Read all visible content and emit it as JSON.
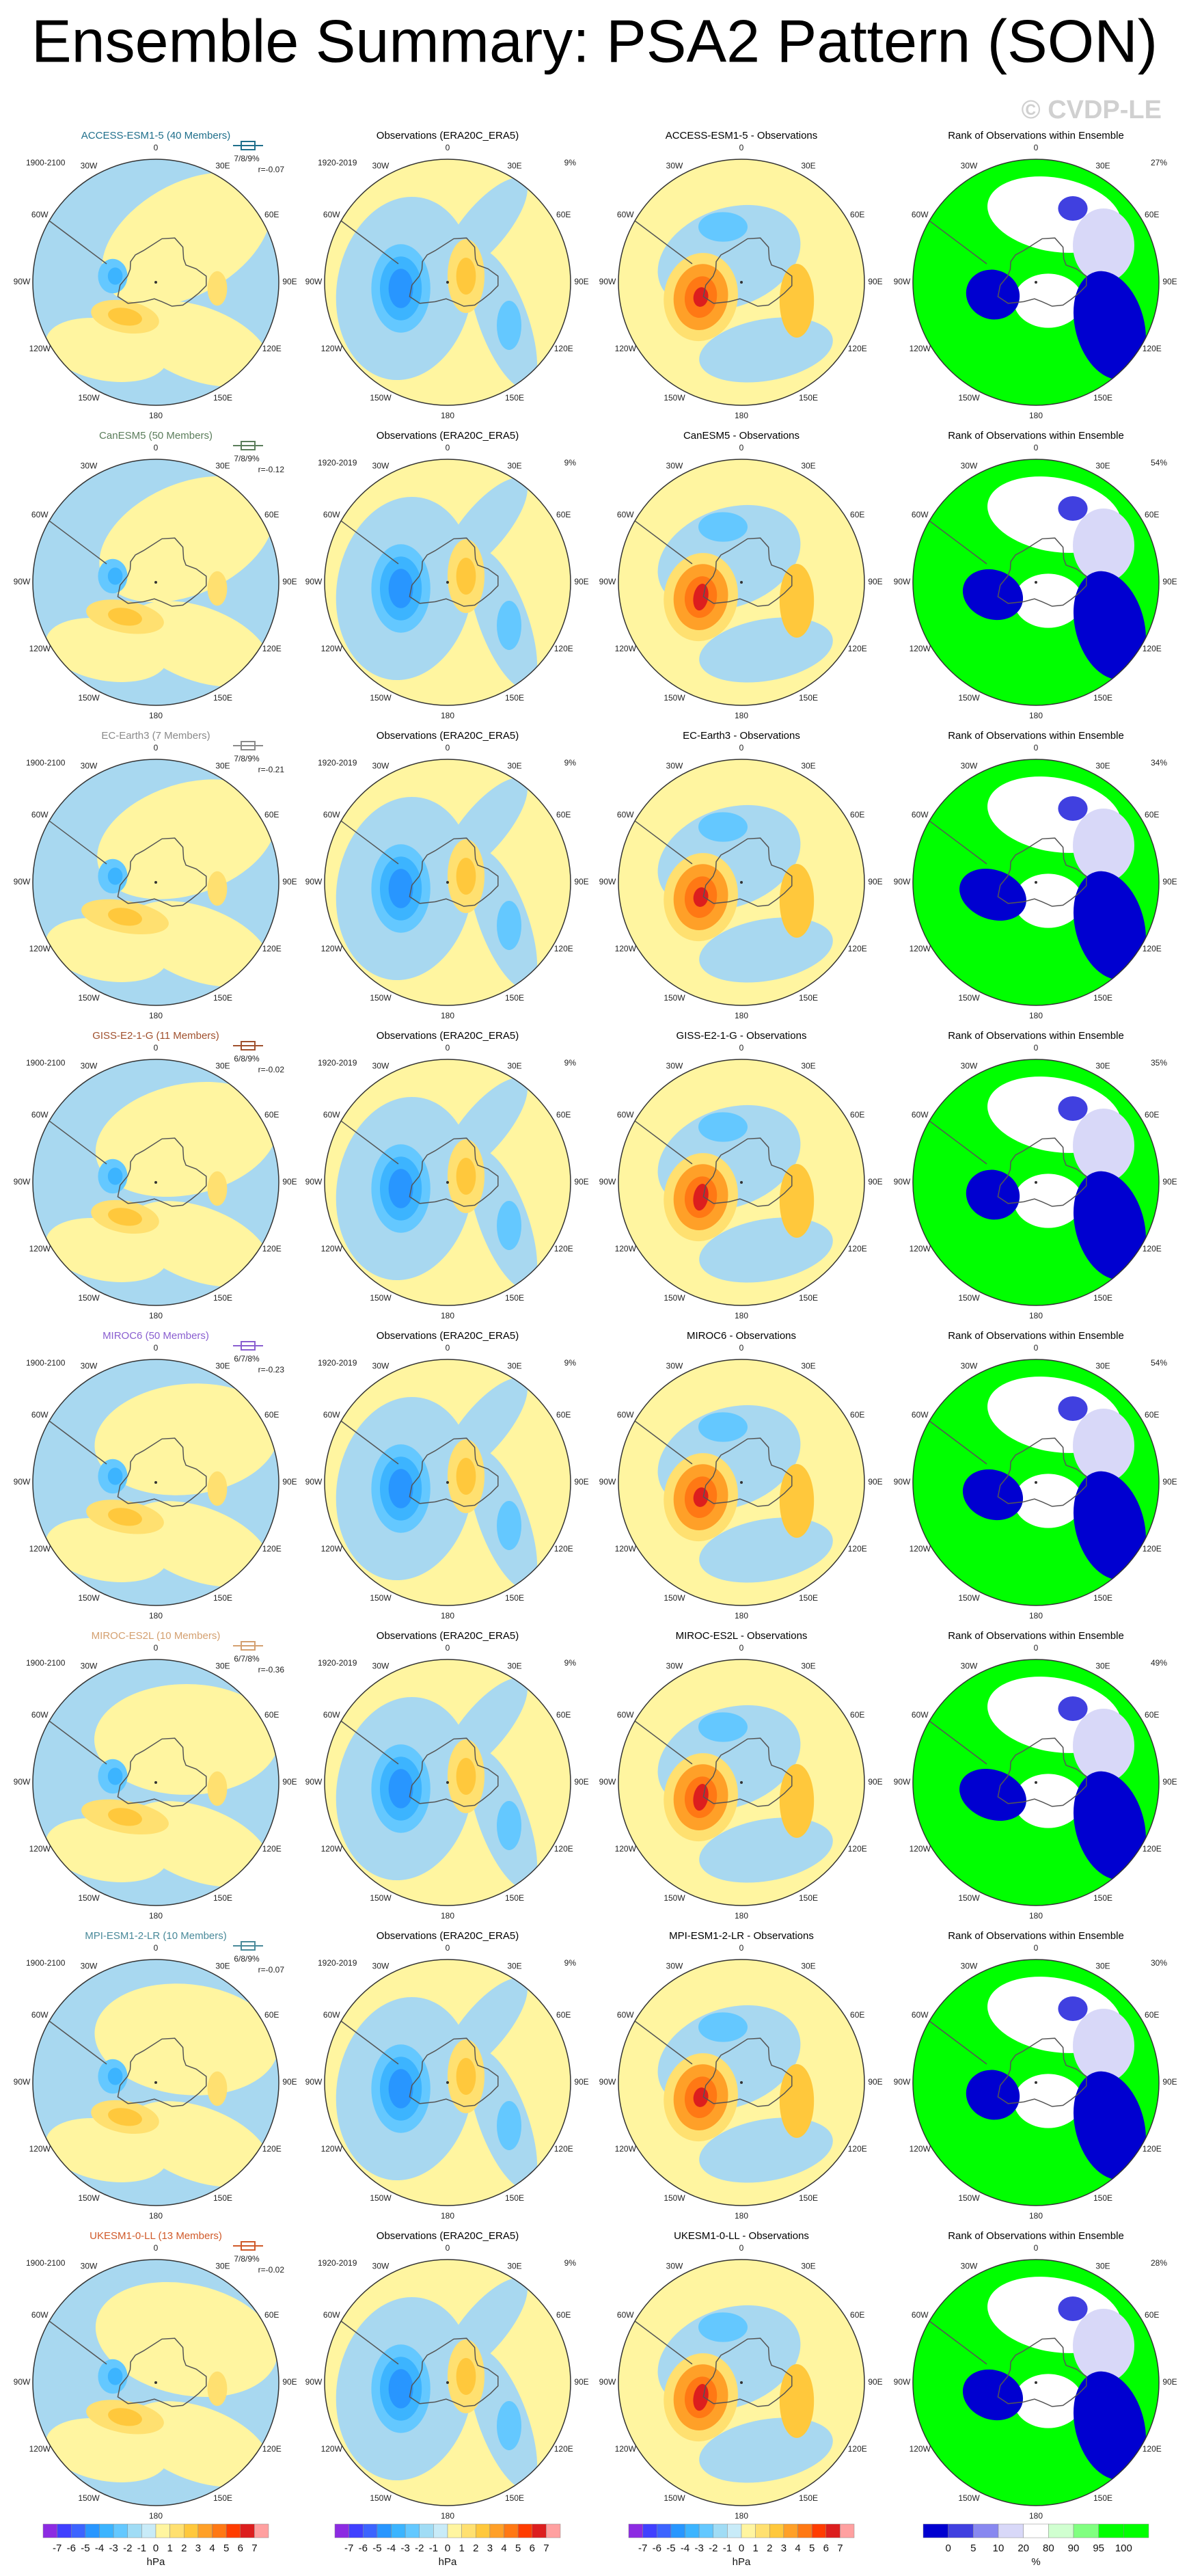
{
  "title": "Ensemble Summary: PSA2 Pattern (SON)",
  "watermark": "© CVDP-LE",
  "lon_labels": [
    "0",
    "30E",
    "60E",
    "90E",
    "120E",
    "150E",
    "180",
    "150W",
    "120W",
    "90W",
    "60W",
    "30W"
  ],
  "obs_title": "Observations (ERA20C_ERA5)",
  "obs_period": "1920-2019",
  "obs_pct": "9%",
  "rank_title": "Rank of Observations within Ensemble",
  "rows": [
    {
      "model": "ACCESS-ESM1-5 (40 Members)",
      "color": "#1f6f8b",
      "period": "1900-2100",
      "stats": "7/8/9%",
      "r": "r=-0.07",
      "diff_title": "ACCESS-ESM1-5 - Observations",
      "rank_pct": "27%"
    },
    {
      "model": "CanESM5 (50 Members)",
      "color": "#5b7d5b",
      "stats": "7/8/9%",
      "r": "r=-0.12",
      "diff_title": "CanESM5 - Observations",
      "rank_pct": "54%"
    },
    {
      "model": "EC-Earth3 (7 Members)",
      "color": "#8a8a8a",
      "period": "1900-2100",
      "stats": "7/8/9%",
      "r": "r=-0.21",
      "diff_title": "EC-Earth3 - Observations",
      "rank_pct": "34%"
    },
    {
      "model": "GISS-E2-1-G (11 Members)",
      "color": "#a0502d",
      "period": "1900-2100",
      "stats": "6/8/9%",
      "r": "r=-0.02",
      "diff_title": "GISS-E2-1-G - Observations",
      "rank_pct": "35%"
    },
    {
      "model": "MIROC6 (50 Members)",
      "color": "#8a5fd0",
      "period": "1900-2100",
      "stats": "6/7/8%",
      "r": "r=-0.23",
      "diff_title": "MIROC6 - Observations",
      "rank_pct": "54%"
    },
    {
      "model": "MIROC-ES2L (10 Members)",
      "color": "#d4a070",
      "period": "1900-2100",
      "stats": "6/7/8%",
      "r": "r=-0.36",
      "diff_title": "MIROC-ES2L - Observations",
      "rank_pct": "49%"
    },
    {
      "model": "MPI-ESM1-2-LR (10 Members)",
      "color": "#4a8a9a",
      "period": "1900-2100",
      "stats": "6/8/9%",
      "r": "r=-0.07",
      "diff_title": "MPI-ESM1-2-LR - Observations",
      "rank_pct": "30%"
    },
    {
      "model": "UKESM1-0-LL (13 Members)",
      "color": "#d05a2a",
      "period": "1900-2100",
      "stats": "7/8/9%",
      "r": "r=-0.02",
      "diff_title": "UKESM1-0-LL - Observations",
      "rank_pct": "28%"
    }
  ],
  "pressure_colorbar": {
    "ticks": [
      "-7",
      "-6",
      "-5",
      "-4",
      "-3",
      "-2",
      "-1",
      "0",
      "1",
      "2",
      "3",
      "4",
      "5",
      "6",
      "7"
    ],
    "unit": "hPa"
  },
  "rank_colorbar": {
    "ticks": [
      "0",
      "5",
      "10",
      "20",
      "80",
      "90",
      "95",
      "100"
    ],
    "unit": "%"
  }
}
